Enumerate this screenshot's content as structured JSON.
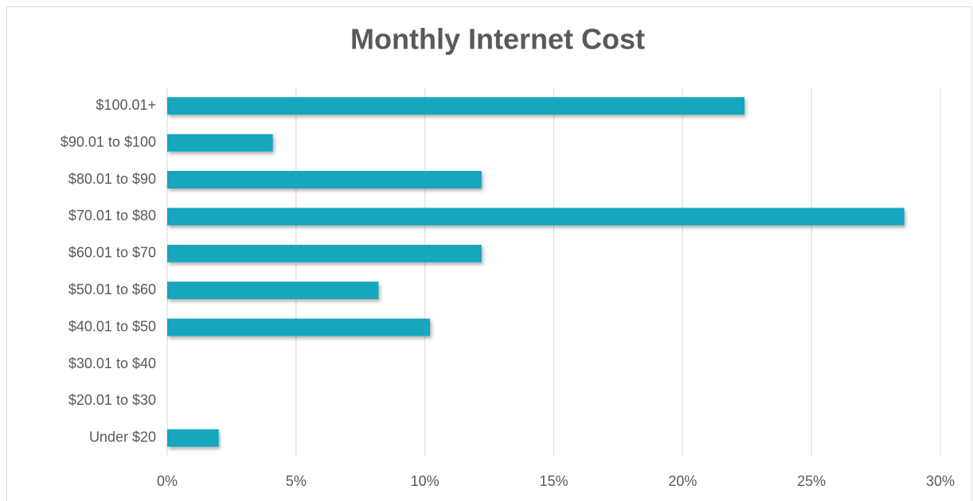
{
  "chart_data": {
    "type": "bar",
    "orientation": "horizontal",
    "title": "Monthly Internet Cost",
    "categories": [
      "$100.01+",
      "$90.01 to $100",
      "$80.01 to $90",
      "$70.01 to $80",
      "$60.01 to $70",
      "$50.01 to $60",
      "$40.01 to $50",
      "$30.01 to $40",
      "$20.01 to $30",
      "Under $20"
    ],
    "values": [
      22.4,
      4.1,
      12.2,
      28.6,
      12.2,
      8.2,
      10.2,
      0,
      0,
      2.0
    ],
    "color": "#17a6bd",
    "xlim": [
      0,
      30
    ],
    "xticks": [
      {
        "value": 0,
        "label": "0%"
      },
      {
        "value": 5,
        "label": "5%"
      },
      {
        "value": 10,
        "label": "10%"
      },
      {
        "value": 15,
        "label": "15%"
      },
      {
        "value": 20,
        "label": "20%"
      },
      {
        "value": 25,
        "label": "25%"
      },
      {
        "value": 30,
        "label": "30%"
      }
    ],
    "grid": true
  }
}
